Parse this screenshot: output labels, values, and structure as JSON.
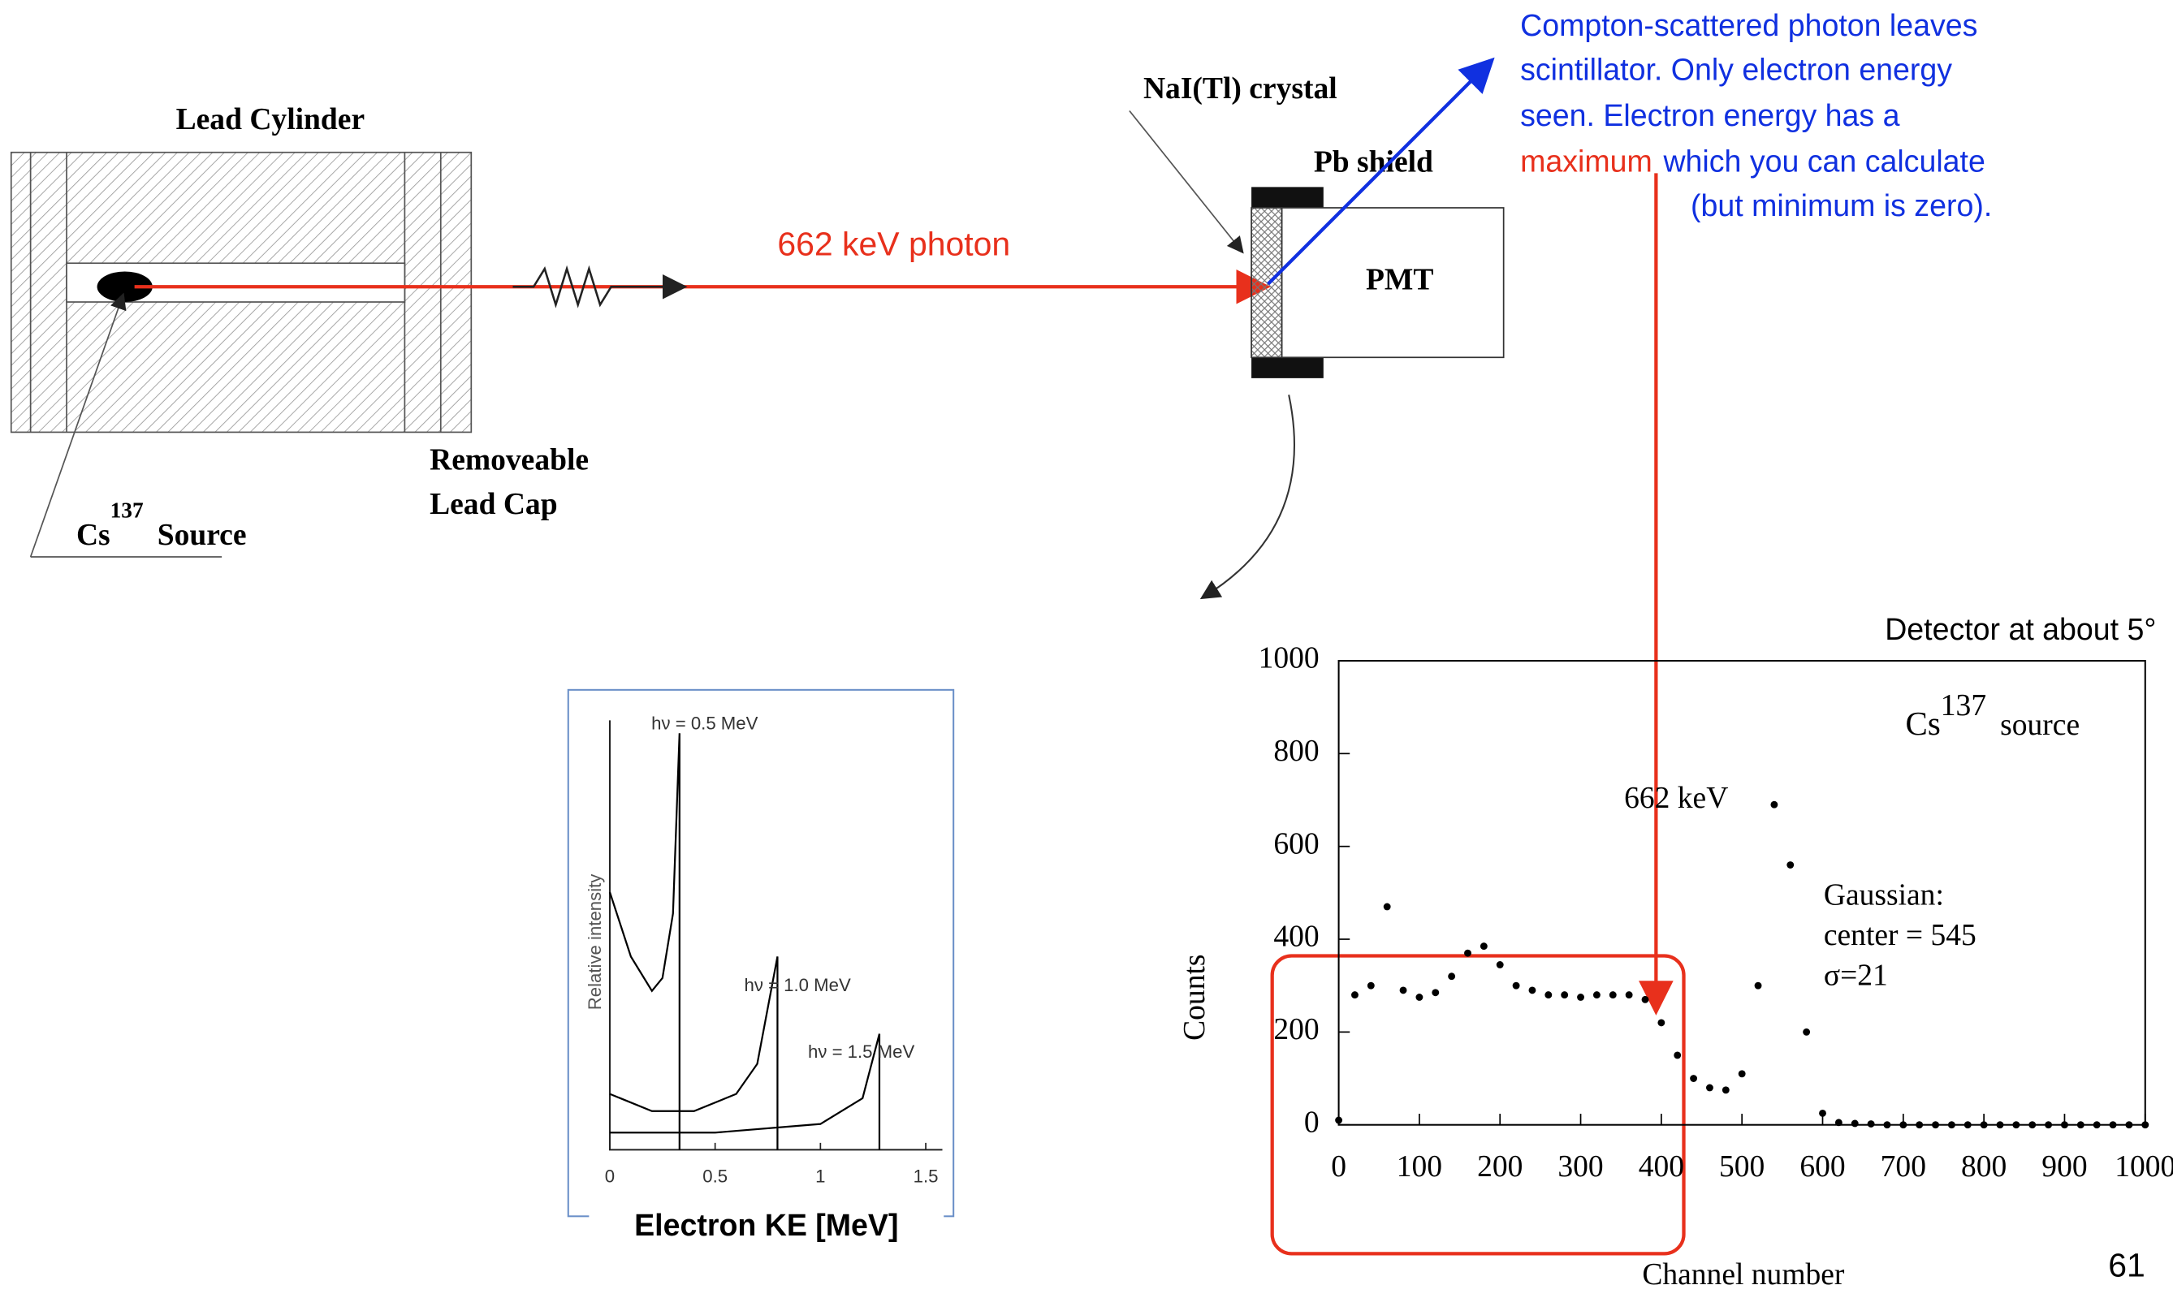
{
  "setup": {
    "lead_cylinder": "Lead Cylinder",
    "source": {
      "element": "Cs",
      "mass": "137",
      "text": "Source"
    },
    "cap": [
      "Removeable",
      "Lead Cap"
    ],
    "photon": "662 keV photon",
    "crystal": "NaI(Tl) crystal",
    "shield": "Pb shield",
    "pmt": "PMT"
  },
  "note": {
    "lines": [
      "Compton-scattered photon leaves",
      "scintillator. Only electron energy",
      "seen. Electron energy has a"
    ],
    "highlight": "maximum",
    "rest": "which you can calculate",
    "last": "(but minimum is zero)."
  },
  "page_number": "61",
  "chart_data": [
    {
      "type": "scatter",
      "title": "Detector at about 5°",
      "source_label": {
        "element": "Cs",
        "mass": "137",
        "text": "source"
      },
      "peak_label": "662 keV",
      "fit": [
        "Gaussian:",
        "center = 545",
        "σ=21"
      ],
      "xlabel": "Channel number",
      "ylabel": "Counts",
      "color": "#000000",
      "x": [
        0,
        20,
        40,
        60,
        80,
        100,
        120,
        140,
        160,
        180,
        200,
        220,
        240,
        260,
        280,
        300,
        320,
        340,
        360,
        380,
        400,
        420,
        440,
        460,
        480,
        500,
        520,
        540,
        560,
        580,
        600,
        620,
        640,
        660,
        680,
        700,
        720,
        740,
        760,
        780,
        800,
        820,
        840,
        860,
        880,
        900,
        920,
        940,
        960,
        980,
        1000
      ],
      "values": [
        10,
        280,
        300,
        470,
        290,
        275,
        285,
        320,
        370,
        385,
        345,
        300,
        290,
        280,
        280,
        275,
        280,
        280,
        280,
        270,
        220,
        150,
        100,
        80,
        75,
        110,
        300,
        690,
        560,
        200,
        25,
        5,
        3,
        2,
        0,
        0,
        0,
        0,
        0,
        0,
        0,
        0,
        0,
        0,
        0,
        0,
        0,
        0,
        0,
        0,
        0
      ],
      "xlim": [
        0,
        1000
      ],
      "ylim": [
        0,
        1000
      ],
      "xticks": [
        0,
        100,
        200,
        300,
        400,
        500,
        600,
        700,
        800,
        900,
        1000
      ],
      "yticks": [
        0,
        200,
        400,
        600,
        800,
        1000
      ]
    },
    {
      "type": "line",
      "xlabel": "Electron KE [MeV]",
      "ylabel": "Relative intensity",
      "color": "#000000",
      "xlim": [
        0,
        1.5
      ],
      "ylim": [
        0,
        1
      ],
      "xticks": [
        0,
        0.5,
        1,
        1.5
      ],
      "series": [
        {
          "name": "hν = 0.5 MeV",
          "x": [
            0,
            0.1,
            0.2,
            0.25,
            0.3,
            0.331,
            0.331
          ],
          "values": [
            0.6,
            0.45,
            0.37,
            0.4,
            0.55,
            0.97,
            0
          ]
        },
        {
          "name": "hν = 1.0 MeV",
          "x": [
            0,
            0.2,
            0.4,
            0.6,
            0.7,
            0.796,
            0.796
          ],
          "values": [
            0.13,
            0.09,
            0.09,
            0.13,
            0.2,
            0.45,
            0
          ]
        },
        {
          "name": "hν = 1.5 MeV",
          "x": [
            0,
            0.5,
            1.0,
            1.2,
            1.28,
            1.28
          ],
          "values": [
            0.04,
            0.04,
            0.06,
            0.12,
            0.27,
            0
          ]
        }
      ]
    }
  ]
}
